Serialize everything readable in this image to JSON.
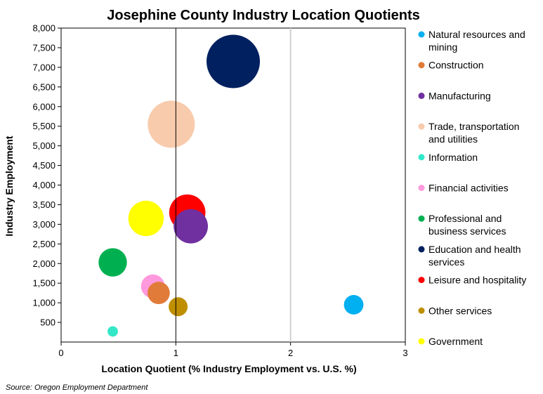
{
  "chart_data": {
    "type": "scatter",
    "title": "Josephine County Industry Location Quotients",
    "xlabel": "Location Quotient (% Industry Employment vs. U.S. %)",
    "ylabel": "Industry Employment",
    "xlim": [
      0,
      3
    ],
    "ylim": [
      0,
      8000
    ],
    "x_ticks": [
      "0",
      "1",
      "2",
      "3"
    ],
    "y_ticks": [
      "500",
      "1,000",
      "1,500",
      "2,000",
      "2,500",
      "3,000",
      "3,500",
      "4,000",
      "4,500",
      "5,000",
      "5,500",
      "6,000",
      "6,500",
      "7,000",
      "7,500",
      "8,000"
    ],
    "grid": "vertical",
    "reference_line_x": 1,
    "legend_position": "right",
    "series": [
      {
        "name": "Natural resources and mining",
        "legend_lines": [
          "Natural resources and",
          "mining"
        ],
        "x": 2.55,
        "y": 950,
        "size": 950,
        "color": "#00b0f0"
      },
      {
        "name": "Construction",
        "legend_lines": [
          "Construction"
        ],
        "x": 0.85,
        "y": 1250,
        "size": 1250,
        "color": "#e07b39"
      },
      {
        "name": "Manufacturing",
        "legend_lines": [
          "Manufacturing"
        ],
        "x": 1.13,
        "y": 2950,
        "size": 2950,
        "color": "#7030a0"
      },
      {
        "name": "Trade, transportation and utilities",
        "legend_lines": [
          "Trade, transportation",
          "and utilities"
        ],
        "x": 0.96,
        "y": 5550,
        "size": 5550,
        "color": "#f8cbad"
      },
      {
        "name": "Information",
        "legend_lines": [
          "Information"
        ],
        "x": 0.45,
        "y": 270,
        "size": 270,
        "color": "#33e8c8"
      },
      {
        "name": "Financial activities",
        "legend_lines": [
          "Financial activities"
        ],
        "x": 0.8,
        "y": 1420,
        "size": 1420,
        "color": "#ff99dd"
      },
      {
        "name": "Professional and business services",
        "legend_lines": [
          "Professional and",
          "business services"
        ],
        "x": 0.45,
        "y": 2030,
        "size": 2030,
        "color": "#00b050"
      },
      {
        "name": "Education and health services",
        "legend_lines": [
          "Education and health",
          "services"
        ],
        "x": 1.5,
        "y": 7150,
        "size": 7150,
        "color": "#002060"
      },
      {
        "name": "Leisure and hospitality",
        "legend_lines": [
          "Leisure and hospitality"
        ],
        "x": 1.1,
        "y": 3300,
        "size": 3300,
        "color": "#ff0000"
      },
      {
        "name": "Other services",
        "legend_lines": [
          "Other services"
        ],
        "x": 1.02,
        "y": 900,
        "size": 900,
        "color": "#bf8f00"
      },
      {
        "name": "Government",
        "legend_lines": [
          "Government"
        ],
        "x": 0.74,
        "y": 3150,
        "size": 3150,
        "color": "#ffff00"
      }
    ]
  },
  "source_note": "Source: Oregon Employment Department"
}
